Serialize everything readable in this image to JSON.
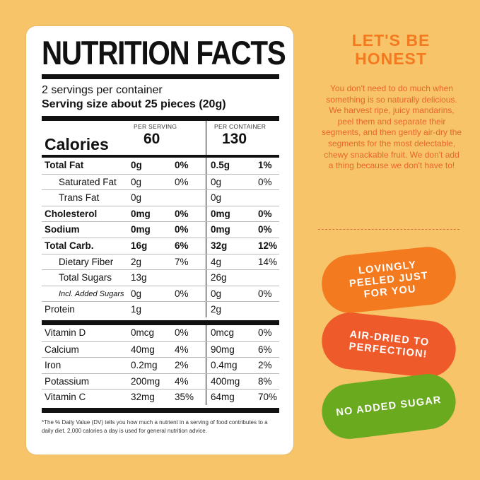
{
  "label": {
    "title": "NUTRITION FACTS",
    "servings": "2 servings per container",
    "serving_size": "Serving size about 25 pieces (20g)",
    "per_serving": "PER SERVING",
    "per_container": "PER CONTAINER",
    "calories_label": "Calories",
    "calories_serving": "60",
    "calories_container": "130",
    "nutrients": [
      {
        "name": "Total Fat",
        "a1": "0g",
        "p1": "0%",
        "a2": "0.5g",
        "p2": "1%"
      },
      {
        "name": "Saturated Fat",
        "a1": "0g",
        "p1": "0%",
        "a2": "0g",
        "p2": "0%"
      },
      {
        "name": "Trans Fat",
        "a1": "0g",
        "p1": "",
        "a2": "0g",
        "p2": ""
      },
      {
        "name": "Cholesterol",
        "a1": "0mg",
        "p1": "0%",
        "a2": "0mg",
        "p2": "0%"
      },
      {
        "name": "Sodium",
        "a1": "0mg",
        "p1": "0%",
        "a2": "0mg",
        "p2": "0%"
      },
      {
        "name": "Total Carb.",
        "a1": "16g",
        "p1": "6%",
        "a2": "32g",
        "p2": "12%"
      },
      {
        "name": "Dietary Fiber",
        "a1": "2g",
        "p1": "7%",
        "a2": "4g",
        "p2": "14%"
      },
      {
        "name": "Total Sugars",
        "a1": "13g",
        "p1": "",
        "a2": "26g",
        "p2": ""
      },
      {
        "name": "Incl. Added Sugars",
        "a1": "0g",
        "p1": "0%",
        "a2": "0g",
        "p2": "0%"
      },
      {
        "name": "Protein",
        "a1": "1g",
        "p1": "",
        "a2": "2g",
        "p2": ""
      }
    ],
    "vitamins": [
      {
        "name": "Vitamin D",
        "a1": "0mcg",
        "p1": "0%",
        "a2": "0mcg",
        "p2": "0%"
      },
      {
        "name": "Calcium",
        "a1": "40mg",
        "p1": "4%",
        "a2": "90mg",
        "p2": "6%"
      },
      {
        "name": "Iron",
        "a1": "0.2mg",
        "p1": "2%",
        "a2": "0.4mg",
        "p2": "2%"
      },
      {
        "name": "Potassium",
        "a1": "200mg",
        "p1": "4%",
        "a2": "400mg",
        "p2": "8%"
      },
      {
        "name": "Vitamin C",
        "a1": "32mg",
        "p1": "35%",
        "a2": "64mg",
        "p2": "70%"
      }
    ],
    "footnote": "*The % Daily Value (DV) tells you how much a nutrient in a serving of food contributes to a daily diet. 2,000 calories a day is used for general nutrition advice."
  },
  "side": {
    "headline_line1": "LET'S BE",
    "headline_line2": "HONEST",
    "body": "You don't need to do much when something is so naturally delicious. We harvest ripe, juicy mandarins, peel them and separate their segments, and then gently air-dry the segments for the most delectable, chewy snackable fruit. We don't add a thing because we don't have to!",
    "pill1": "LOVINGLY PEELED JUST FOR YOU",
    "pill2": "AIR-DRIED TO PERFECTION!",
    "pill3": "NO ADDED SUGAR"
  },
  "colors": {
    "background": "#f8c46a",
    "orange": "#f47a1f",
    "red_orange": "#ef5a2b",
    "green": "#6aaa1f"
  }
}
